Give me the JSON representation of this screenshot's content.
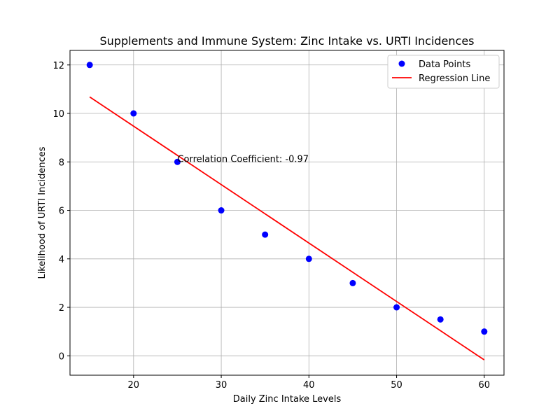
{
  "chart_data": {
    "type": "scatter",
    "title": "Supplements and Immune System: Zinc Intake vs. URTI Incidences",
    "xlabel": "Daily Zinc Intake Levels",
    "ylabel": "Likelihood of URTI Incidences",
    "xlim": [
      12.75,
      62.25
    ],
    "ylim": [
      -0.8,
      12.6
    ],
    "xticks": [
      20,
      30,
      40,
      50,
      60
    ],
    "yticks": [
      0,
      2,
      4,
      6,
      8,
      10,
      12
    ],
    "grid": true,
    "legend_position": "top-right",
    "series": [
      {
        "name": "Data Points",
        "kind": "scatter",
        "color": "#0000ff",
        "x": [
          15,
          20,
          25,
          30,
          35,
          40,
          45,
          50,
          55,
          60
        ],
        "y": [
          12,
          10,
          8,
          6,
          5,
          4,
          3,
          2,
          1.5,
          1
        ]
      },
      {
        "name": "Regression Line",
        "kind": "line",
        "color": "#ff0000",
        "x": [
          15,
          60
        ],
        "y": [
          10.68,
          -0.17
        ]
      }
    ],
    "annotations": [
      {
        "text": "Correlation Coefficient: -0.97",
        "x": 25,
        "y": 8
      }
    ]
  }
}
